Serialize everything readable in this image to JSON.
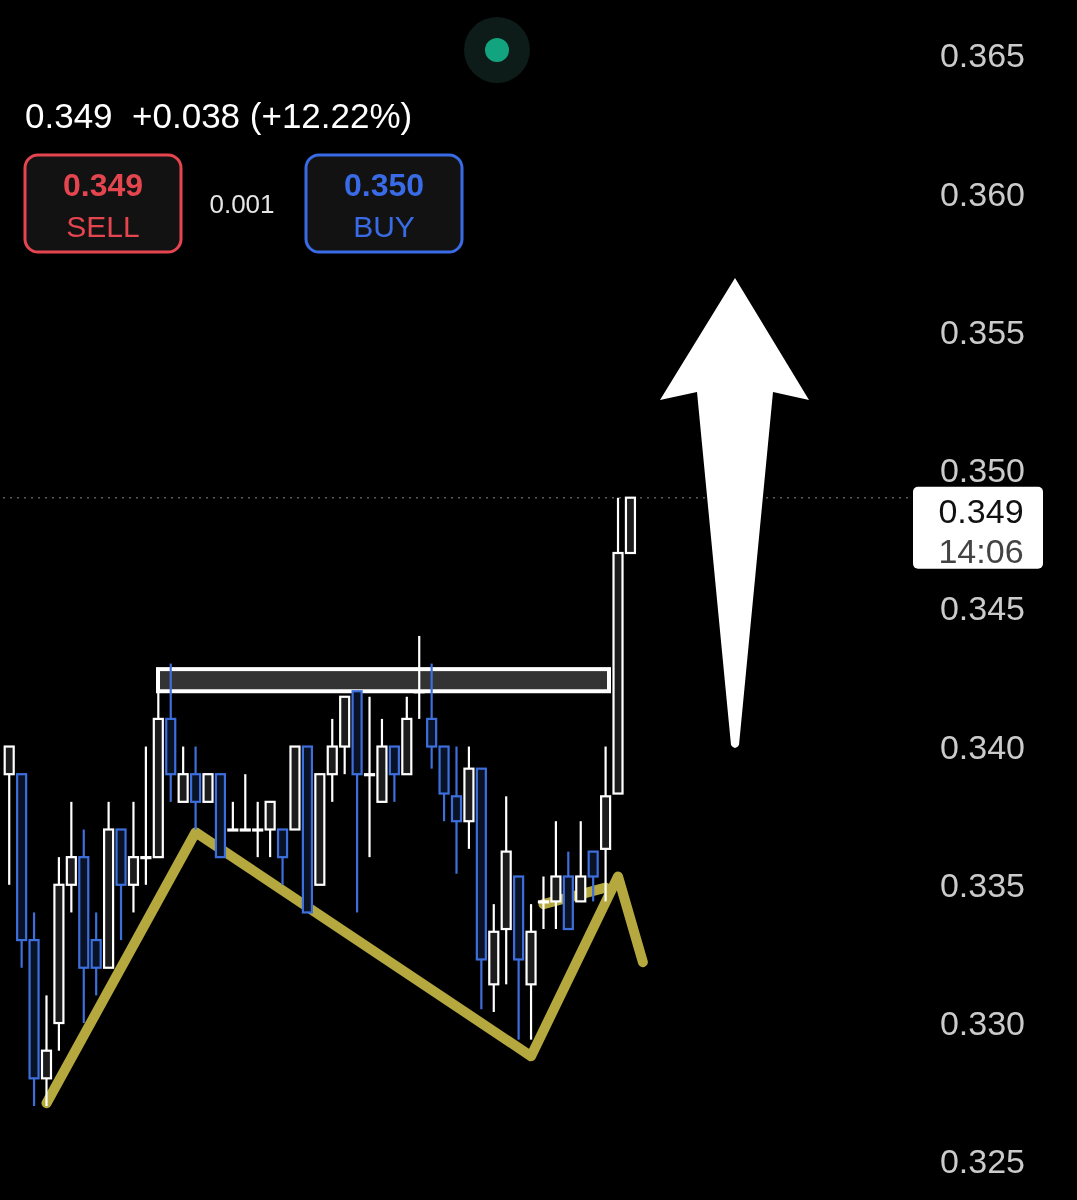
{
  "chart_data": {
    "type": "candlestick",
    "subtitle": "0.349  +0.038 (+12.22%)",
    "annotations": [
      "0.349",
      "SELL",
      "0.001",
      "0.350",
      "BUY"
    ],
    "categories": [
      null,
      null,
      null,
      null,
      null,
      null,
      null,
      null,
      null,
      null,
      null,
      null,
      null,
      null,
      null,
      null,
      null,
      null,
      null,
      null,
      null,
      null,
      null,
      null,
      null,
      null,
      null,
      null,
      null,
      null,
      null,
      null,
      null,
      null,
      null,
      null,
      null,
      null,
      null,
      null,
      null,
      null,
      null,
      null,
      null,
      null,
      null,
      null,
      null,
      null,
      null,
      null,
      null,
      null,
      null,
      null,
      null,
      null,
      null,
      null,
      null,
      null,
      null,
      null,
      null,
      null,
      null,
      null,
      null,
      null,
      null,
      null,
      null
    ],
    "ohlc": [
      [
        0.339,
        0.34,
        0.335,
        0.34
      ],
      [
        0.339,
        0.339,
        0.332,
        0.333
      ],
      [
        0.333,
        0.334,
        0.327,
        0.328
      ],
      [
        0.328,
        0.331,
        0.327,
        0.329
      ],
      [
        0.33,
        0.336,
        0.329,
        0.335
      ],
      [
        0.335,
        0.338,
        0.334,
        0.336
      ],
      [
        0.336,
        0.337,
        0.33,
        0.332
      ],
      [
        0.333,
        0.334,
        0.331,
        0.332
      ],
      [
        0.332,
        0.338,
        0.332,
        0.337
      ],
      [
        0.337,
        0.337,
        0.333,
        0.335
      ],
      [
        0.335,
        0.338,
        0.334,
        0.336
      ],
      [
        0.336,
        0.34,
        0.335,
        0.336
      ],
      [
        0.336,
        0.342,
        0.336,
        0.341
      ],
      [
        0.341,
        0.343,
        0.338,
        0.339
      ],
      [
        0.338,
        0.34,
        0.338,
        0.339
      ],
      [
        0.339,
        0.34,
        0.337,
        0.338
      ],
      [
        0.338,
        0.339,
        0.338,
        0.339
      ],
      [
        0.339,
        0.339,
        0.336,
        0.336
      ],
      [
        0.337,
        0.338,
        0.337,
        0.337
      ],
      [
        0.337,
        0.339,
        0.337,
        0.337
      ],
      [
        0.337,
        0.338,
        0.336,
        0.337
      ],
      [
        0.337,
        0.338,
        0.336,
        0.338
      ],
      [
        0.337,
        0.337,
        0.335,
        0.336
      ],
      [
        0.337,
        0.34,
        0.337,
        0.34
      ],
      [
        0.34,
        0.34,
        0.334,
        0.334
      ],
      [
        0.335,
        0.339,
        0.335,
        0.339
      ],
      [
        0.339,
        0.341,
        0.338,
        0.34
      ],
      [
        0.34,
        0.3418,
        0.339,
        0.3418
      ],
      [
        0.342,
        0.342,
        0.334,
        0.339
      ],
      [
        0.339,
        0.3418,
        0.336,
        0.339
      ],
      [
        0.338,
        0.341,
        0.338,
        0.34
      ],
      [
        0.34,
        0.34,
        0.338,
        0.339
      ],
      [
        0.339,
        0.3418,
        0.339,
        0.341
      ],
      [
        0.342,
        0.344,
        0.341,
        0.342
      ],
      [
        0.341,
        0.343,
        0.3392,
        0.34
      ],
      [
        0.34,
        0.34,
        0.3373,
        0.3383
      ],
      [
        0.3382,
        0.34,
        0.3354,
        0.3373
      ],
      [
        0.3373,
        0.34,
        0.3363,
        0.3392
      ],
      [
        0.3392,
        0.3392,
        0.3305,
        0.3323
      ],
      [
        0.3314,
        0.3343,
        0.3304,
        0.3333
      ],
      [
        0.3334,
        0.3382,
        0.3314,
        0.3362
      ],
      [
        0.3353,
        0.3353,
        0.3294,
        0.3323
      ],
      [
        0.3314,
        0.3343,
        0.3294,
        0.3333
      ],
      [
        0.3344,
        0.3353,
        0.3334,
        0.3344
      ],
      [
        0.3344,
        0.3373,
        0.3334,
        0.3353
      ],
      [
        0.3353,
        0.3362,
        0.3334,
        0.3334
      ],
      [
        0.3344,
        0.3373,
        0.3344,
        0.3353
      ],
      [
        0.3362,
        0.3362,
        0.3344,
        0.3353
      ],
      [
        0.3363,
        0.34,
        0.3344,
        0.3382
      ],
      [
        0.3383,
        0.349,
        0.3383,
        0.347
      ],
      [
        0.347,
        0.349,
        0.347,
        0.349
      ],
      null,
      null,
      null,
      null,
      null,
      null,
      null,
      null,
      null,
      null,
      null,
      null,
      null,
      null,
      null,
      null,
      null,
      null,
      null,
      null,
      null,
      null
    ],
    "series": [
      {
        "type": "line",
        "color": "#b5a83f",
        "values": [
          null,
          null,
          null,
          0.3271,
          null,
          null,
          null,
          null,
          null,
          null,
          null,
          null,
          null,
          null,
          null,
          0.3369,
          null,
          null,
          null,
          null,
          null,
          null,
          null,
          null,
          null,
          null,
          null,
          null,
          null,
          null,
          null,
          null,
          null,
          null,
          null,
          null,
          null,
          null,
          null,
          null,
          null,
          null,
          0.3288,
          null,
          null,
          null,
          null,
          null,
          null,
          0.3353,
          null,
          0.3322,
          null,
          null,
          null,
          null,
          null,
          null,
          null,
          null,
          null,
          null,
          null,
          null,
          null,
          null,
          null,
          null,
          null,
          null,
          null,
          null,
          null
        ]
      },
      {
        "type": "line",
        "color": "#b5a83f",
        "values": [
          null,
          null,
          null,
          null,
          null,
          null,
          null,
          null,
          null,
          null,
          null,
          null,
          null,
          null,
          null,
          null,
          null,
          null,
          null,
          null,
          null,
          null,
          null,
          null,
          null,
          null,
          null,
          null,
          null,
          null,
          null,
          null,
          null,
          null,
          null,
          null,
          null,
          null,
          null,
          null,
          null,
          null,
          null,
          0.3343,
          null,
          null,
          null,
          null,
          0.3349,
          null,
          null,
          null,
          null,
          null,
          null,
          null,
          null,
          null,
          null,
          null,
          null,
          null,
          null,
          null,
          null,
          null,
          null,
          null,
          null,
          null,
          null,
          null,
          null
        ]
      }
    ],
    "ylim": [
      0.3236,
      0.367
    ],
    "yticks": [
      0.325,
      {
        "value": 0.33,
        "label": "0.330"
      },
      0.335,
      {
        "value": 0.34,
        "label": "0.340"
      },
      0.345,
      {
        "value": 0.35,
        "label": "0.350"
      },
      0.355,
      {
        "value": 0.36,
        "label": "0.360"
      },
      0.365
    ],
    "ref_lines": [
      {
        "axis": "y",
        "value": 0.349,
        "label": "0.349\n14:06",
        "color": "#5a5a5a",
        "line_style": "dotted"
      }
    ],
    "bands": [
      {
        "axis": "y",
        "from": 0.342,
        "to": 0.3428,
        "color": "#333333"
      }
    ],
    "tick_labels": "y"
  }
}
